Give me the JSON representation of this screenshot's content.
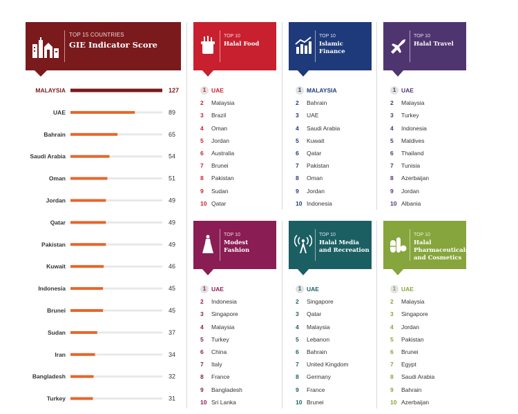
{
  "colors": {
    "gie_header": "#7a1a1c",
    "gie_top_bar": "#7a1a1c",
    "gie_bar": "#e8652b",
    "gie_track": "#e8e8e8",
    "food": "#c8202e",
    "finance": "#1f3a7a",
    "travel": "#4f3570",
    "fashion": "#8a1d53",
    "media": "#1b5f63",
    "pharma": "#86a53c"
  },
  "gie": {
    "kicker": "TOP 15 COUNTRIES",
    "title": "GIE Indicator Score",
    "icon": "city-buildings-icon"
  },
  "chart_data": {
    "type": "bar",
    "orientation": "horizontal",
    "title": "GIE Indicator Score",
    "subtitle": "TOP 15 COUNTRIES",
    "categories": [
      "MALAYSIA",
      "UAE",
      "Bahrain",
      "Saudi Arabia",
      "Oman",
      "Jordan",
      "Qatar",
      "Pakistan",
      "Kuwait",
      "Indonesia",
      "Brunei",
      "Sudan",
      "Iran",
      "Bangladesh",
      "Turkey"
    ],
    "values": [
      127,
      89,
      65,
      54,
      51,
      49,
      49,
      49,
      46,
      45,
      45,
      37,
      34,
      32,
      31
    ],
    "xlim": [
      0,
      127
    ],
    "grid": false,
    "data_labels": true
  },
  "panels": [
    {
      "id": "food",
      "kicker": "TOP 10",
      "title": "Halal Food",
      "icon": "food-container-icon",
      "items": [
        "UAE",
        "Malaysia",
        "Brazil",
        "Oman",
        "Jordan",
        "Australia",
        "Brunei",
        "Pakistan",
        "Sudan",
        "Qatar"
      ]
    },
    {
      "id": "finance",
      "kicker": "TOP 10",
      "title": "Islamic Finance",
      "icon": "growth-chart-icon",
      "items": [
        "MALAYSIA",
        "Bahrain",
        "UAE",
        "Saudi Arabia",
        "Kuwait",
        "Qatar",
        "Pakistan",
        "Oman",
        "Jordan",
        "Indonesia"
      ]
    },
    {
      "id": "travel",
      "kicker": "TOP 10",
      "title": "Halal Travel",
      "icon": "airplane-icon",
      "items": [
        "UAE",
        "Malaysia",
        "Turkey",
        "Indonesia",
        "Maldives",
        "Thailand",
        "Tunisia",
        "Azerbaijan",
        "Jordan",
        "Albania"
      ]
    },
    {
      "id": "fashion",
      "kicker": "TOP 10",
      "title": "Modest Fashion",
      "icon": "dress-icon",
      "items": [
        "UAE",
        "Indonesia",
        "Singapore",
        "Malaysia",
        "Turkey",
        "China",
        "Italy",
        "France",
        "Bangladesh",
        "Sri Lanka"
      ]
    },
    {
      "id": "media",
      "kicker": "TOP 10",
      "title": "Halal Media and Recreation",
      "icon": "broadcast-tower-icon",
      "items": [
        "UAE",
        "Singapore",
        "Qatar",
        "Malaysia",
        "Lebanon",
        "Bahrain",
        "United Kingdom",
        "Germany",
        "France",
        "Brunei"
      ]
    },
    {
      "id": "pharma",
      "kicker": "TOP 10",
      "title": "Halal Pharmaceuticals and Cosmetics",
      "icon": "pills-icon",
      "items": [
        "UAE",
        "Malaysia",
        "Singapore",
        "Jordan",
        "Pakistan",
        "Brunei",
        "Egypt",
        "Saudi Arabia",
        "Bahrain",
        "Azerbaijan"
      ]
    }
  ]
}
